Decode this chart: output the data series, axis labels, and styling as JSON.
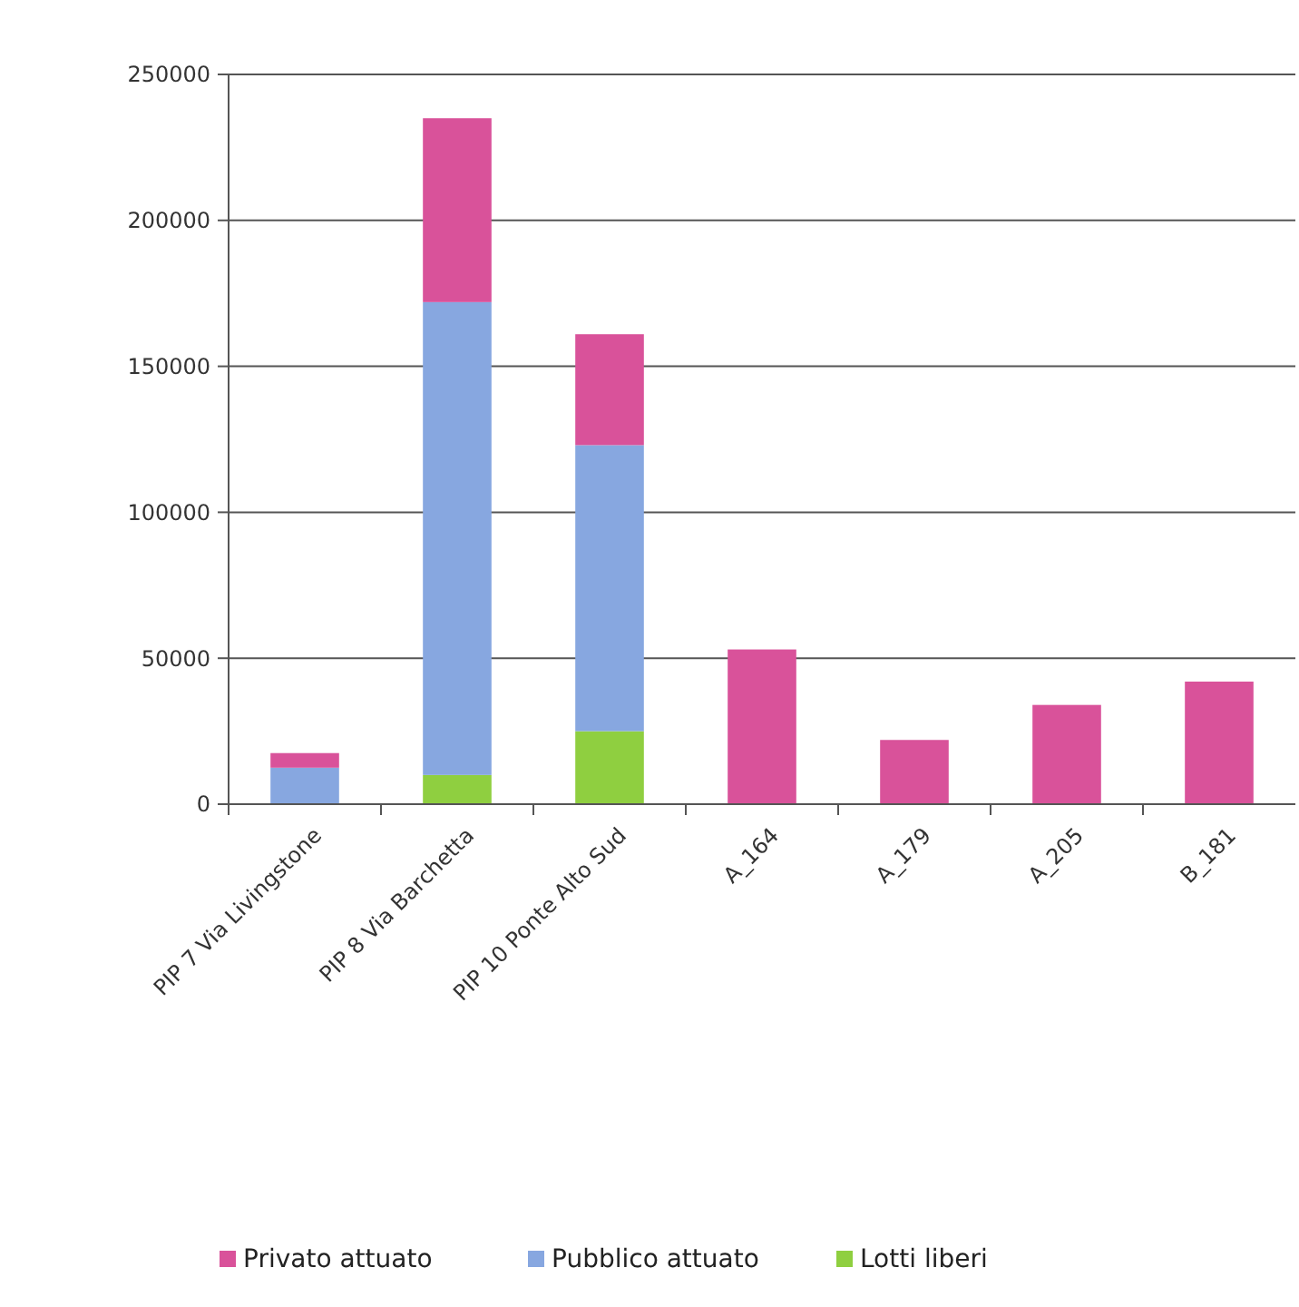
{
  "chart_data": {
    "type": "bar",
    "stacked": true,
    "categories": [
      "PIP 7 Via Livingstone",
      "PIP 8 Via Barchetta",
      "PIP 10 Ponte Alto Sud",
      "A_164",
      "A_179",
      "A_205",
      "B_181"
    ],
    "series": [
      {
        "name": "Lotti liberi",
        "color": "#8fcf40",
        "values": [
          0,
          10000,
          25000,
          0,
          0,
          0,
          0
        ]
      },
      {
        "name": "Pubblico attuato",
        "color": "#87a7e0",
        "values": [
          12500,
          162000,
          98000,
          0,
          0,
          0,
          0
        ]
      },
      {
        "name": "Privato attuato",
        "color": "#d9529a",
        "values": [
          5000,
          63000,
          38000,
          53000,
          22000,
          34000,
          42000
        ]
      }
    ],
    "ylim": [
      0,
      250000
    ],
    "yticks": [
      0,
      50000,
      100000,
      150000,
      200000,
      250000
    ],
    "grid": "y",
    "legend": "bottom"
  }
}
